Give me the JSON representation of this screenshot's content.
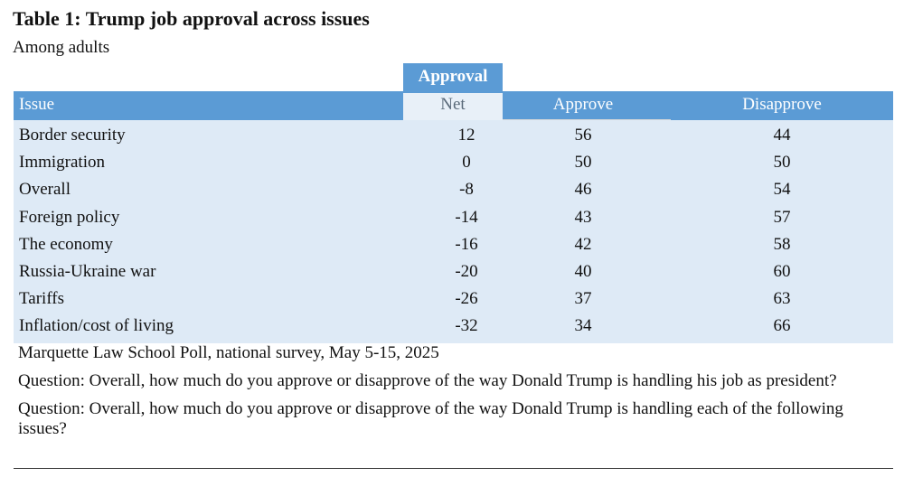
{
  "title": "Table 1: Trump job approval across issues",
  "subtitle": "Among adults",
  "table": {
    "group_header": "Approval",
    "columns": [
      "Issue",
      "Net",
      "Approve",
      "Disapprove"
    ],
    "rows": [
      {
        "issue": "Border security",
        "net": "12",
        "approve": "56",
        "disapprove": "44"
      },
      {
        "issue": "Immigration",
        "net": "0",
        "approve": "50",
        "disapprove": "50"
      },
      {
        "issue": "Overall",
        "net": "-8",
        "approve": "46",
        "disapprove": "54"
      },
      {
        "issue": "Foreign policy",
        "net": "-14",
        "approve": "43",
        "disapprove": "57"
      },
      {
        "issue": "The economy",
        "net": "-16",
        "approve": "42",
        "disapprove": "58"
      },
      {
        "issue": "Russia-Ukraine war",
        "net": "-20",
        "approve": "40",
        "disapprove": "60"
      },
      {
        "issue": "Tariffs",
        "net": "-26",
        "approve": "37",
        "disapprove": "63"
      },
      {
        "issue": "Inflation/cost of living",
        "net": "-32",
        "approve": "34",
        "disapprove": "66"
      }
    ]
  },
  "notes": {
    "source": "Marquette Law School Poll, national survey, May 5-15, 2025",
    "question1": "Question: Overall, how much do you approve or disapprove of the way Donald Trump is handling his job as president?",
    "question2": "Question: Overall, how much do you approve or disapprove of the way Donald Trump is handling each of the following issues?"
  },
  "colors": {
    "header_blue": "#5b9bd5",
    "body_blue": "#deeaf6"
  }
}
